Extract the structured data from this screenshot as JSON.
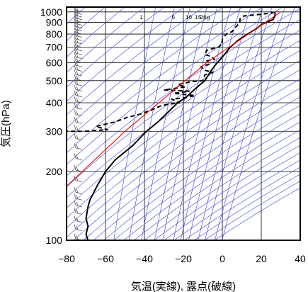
{
  "chart_data": {
    "type": "line",
    "title": "",
    "xlabel": "気温(実線), 露点(破線)",
    "ylabel": "気圧(hPa)",
    "xlim": [
      -80,
      40
    ],
    "ylim": [
      1050,
      100
    ],
    "x_ticks": [
      "−80",
      "−60",
      "−40",
      "−20",
      "0",
      "20",
      "40"
    ],
    "y_ticks": [
      "100",
      "200",
      "300",
      "400",
      "500",
      "600",
      "700",
      "800",
      "900",
      "1000"
    ],
    "x_tick_values": [
      -80,
      -60,
      -40,
      -20,
      0,
      20,
      40
    ],
    "y_tick_values": [
      100,
      200,
      300,
      400,
      500,
      600,
      700,
      800,
      900,
      1000
    ],
    "y_scale": "log",
    "mixing_ratio_labels": [
      {
        "label": "1",
        "value": 1
      },
      {
        "label": "5",
        "value": 5
      },
      {
        "label": "10",
        "value": 10
      },
      {
        "label": "15",
        "value": 15
      },
      {
        "label": "20g",
        "value": 20
      }
    ],
    "series": [
      {
        "style": "solid",
        "color": "#000000",
        "points": [
          [
            27,
            1000
          ],
          [
            27,
            960
          ],
          [
            26,
            925
          ],
          [
            20,
            880
          ],
          [
            18,
            850
          ],
          [
            13,
            800
          ],
          [
            8,
            750
          ],
          [
            4,
            700
          ],
          [
            1,
            650
          ],
          [
            -1,
            620
          ],
          [
            -4,
            580
          ],
          [
            -6,
            550
          ],
          [
            -9,
            500
          ],
          [
            -14,
            460
          ],
          [
            -19,
            420
          ],
          [
            -23,
            400
          ],
          [
            -27,
            370
          ],
          [
            -33,
            330
          ],
          [
            -39,
            300
          ],
          [
            -46,
            260
          ],
          [
            -55,
            225
          ],
          [
            -60,
            200
          ],
          [
            -64,
            175
          ],
          [
            -68,
            150
          ],
          [
            -69,
            140
          ],
          [
            -70,
            125
          ],
          [
            -69,
            115
          ],
          [
            -70,
            106
          ],
          [
            -69,
            100
          ]
        ]
      },
      {
        "style": "dashed",
        "color": "#000000",
        "points": [
          [
            25,
            1000
          ],
          [
            26,
            990
          ],
          [
            19,
            975
          ],
          [
            11,
            960
          ],
          [
            9,
            930
          ],
          [
            9,
            900
          ],
          [
            7,
            860
          ],
          [
            5,
            820
          ],
          [
            2,
            800
          ],
          [
            0,
            760
          ],
          [
            0,
            730
          ],
          [
            -2,
            700
          ],
          [
            -8,
            680
          ],
          [
            -9,
            650
          ],
          [
            -6,
            640
          ],
          [
            -4,
            620
          ],
          [
            -8,
            610
          ],
          [
            -7,
            590
          ],
          [
            -11,
            575
          ],
          [
            -9,
            555
          ],
          [
            -5,
            545
          ],
          [
            -9,
            530
          ],
          [
            -10,
            500
          ],
          [
            -16,
            495
          ],
          [
            -23,
            480
          ],
          [
            -19,
            470
          ],
          [
            -30,
            455
          ],
          [
            -17,
            450
          ],
          [
            -25,
            440
          ],
          [
            -14,
            430
          ],
          [
            -20,
            420
          ],
          [
            -26,
            415
          ],
          [
            -22,
            400
          ],
          [
            -31,
            390
          ],
          [
            -37,
            370
          ],
          [
            -43,
            355
          ],
          [
            -49,
            345
          ],
          [
            -55,
            330
          ],
          [
            -65,
            315
          ],
          [
            -59,
            305
          ],
          [
            -71,
            300
          ],
          [
            -82,
            300
          ]
        ]
      },
      {
        "style": "solid",
        "color": "#ff0000",
        "points": [
          [
            30,
            1000
          ],
          [
            -8,
            600
          ],
          [
            -50,
            300
          ],
          [
            -84,
            160
          ]
        ]
      }
    ],
    "wind_barbs": {
      "color": "#555555",
      "levels_hPa": [
        1000,
        975,
        950,
        925,
        900,
        875,
        850,
        825,
        800,
        775,
        750,
        725,
        700,
        675,
        650,
        625,
        600,
        575,
        550,
        525,
        500,
        475,
        450,
        425,
        400,
        375,
        350,
        325,
        300,
        275,
        250,
        225,
        200,
        180,
        160,
        150,
        140,
        130,
        120,
        110,
        100
      ]
    },
    "colors": {
      "frame": "#000000",
      "grid": "#000000",
      "dry_adiabats": "#3340e0",
      "mixing_ratio_lines": "#3340e0",
      "parcel_path": "#ff0000",
      "background": "#ffffff"
    },
    "grid": true,
    "legend": "none"
  }
}
